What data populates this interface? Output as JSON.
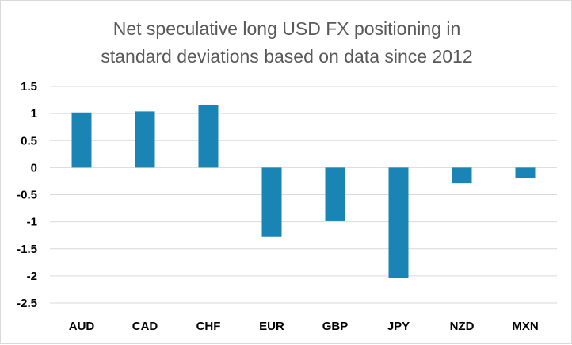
{
  "chart_data": {
    "type": "bar",
    "title_lines": [
      "Net speculative long USD FX positioning in",
      "standard deviations based on data since 2012"
    ],
    "categories": [
      "AUD",
      "CAD",
      "CHF",
      "EUR",
      "GBP",
      "JPY",
      "NZD",
      "MXN"
    ],
    "values": [
      1.02,
      1.04,
      1.16,
      -1.28,
      -0.99,
      -2.04,
      -0.29,
      -0.2
    ],
    "ylim": [
      -2.5,
      1.5
    ],
    "yticks": [
      1.5,
      1,
      0.5,
      0,
      -0.5,
      -1,
      -1.5,
      -2,
      -2.5
    ],
    "ytick_labels": [
      "1.5",
      "1",
      "0.5",
      "0",
      "-0.5",
      "-1",
      "-1.5",
      "-2",
      "-2.5"
    ],
    "grid": true,
    "legend": "none",
    "bar_color": "#1a84b4",
    "grid_color": "#d9d9d9"
  }
}
